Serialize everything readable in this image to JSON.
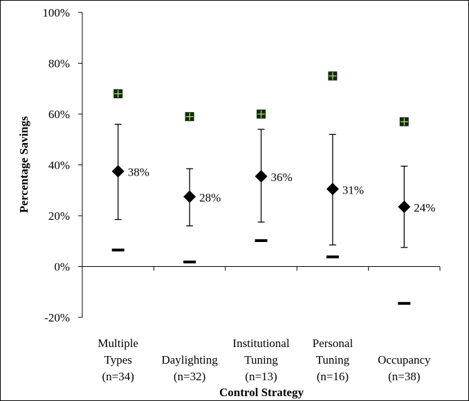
{
  "chart_data": {
    "type": "scatter",
    "title": "",
    "xlabel": "Control Strategy",
    "ylabel": "Percentage Savings",
    "ylim": [
      -20,
      100
    ],
    "y_ticks": [
      {
        "value": -20,
        "label": "-20%"
      },
      {
        "value": 0,
        "label": "0%"
      },
      {
        "value": 20,
        "label": "20%"
      },
      {
        "value": 40,
        "label": "40%"
      },
      {
        "value": 60,
        "label": "60%"
      },
      {
        "value": 80,
        "label": "80%"
      },
      {
        "value": 100,
        "label": "100%"
      }
    ],
    "grid": false,
    "legend": "none",
    "categories": [
      {
        "lines": [
          "Multiple",
          "Types",
          "(n=34)"
        ]
      },
      {
        "lines": [
          "Daylighting",
          "(n=32)"
        ]
      },
      {
        "lines": [
          "Institutional",
          "Tuning",
          "(n=13)"
        ]
      },
      {
        "lines": [
          "Personal",
          "Tuning",
          "(n=16)"
        ]
      },
      {
        "lines": [
          "Occupancy",
          "(n=38)"
        ]
      }
    ],
    "series": [
      {
        "marker": "diamond",
        "values": [
          37.5,
          27.5,
          35.5,
          30.5,
          23.5
        ],
        "labels": [
          "38%",
          "28%",
          "36%",
          "31%",
          "24%"
        ]
      },
      {
        "marker": "errorbar-high",
        "values": [
          56,
          38.5,
          54,
          52,
          39.5
        ]
      },
      {
        "marker": "errorbar-low",
        "values": [
          18.5,
          16,
          17.5,
          8.5,
          7.5
        ]
      },
      {
        "marker": "square",
        "values": [
          68,
          59,
          60,
          75,
          57
        ]
      },
      {
        "marker": "dash",
        "values": [
          6.5,
          1.8,
          10.2,
          3.8,
          -14.5
        ]
      }
    ],
    "colors": {
      "mean": "#000000",
      "max_fill": "#0d2a0d",
      "max_cross": "#c9e070",
      "min": "#000000"
    }
  }
}
